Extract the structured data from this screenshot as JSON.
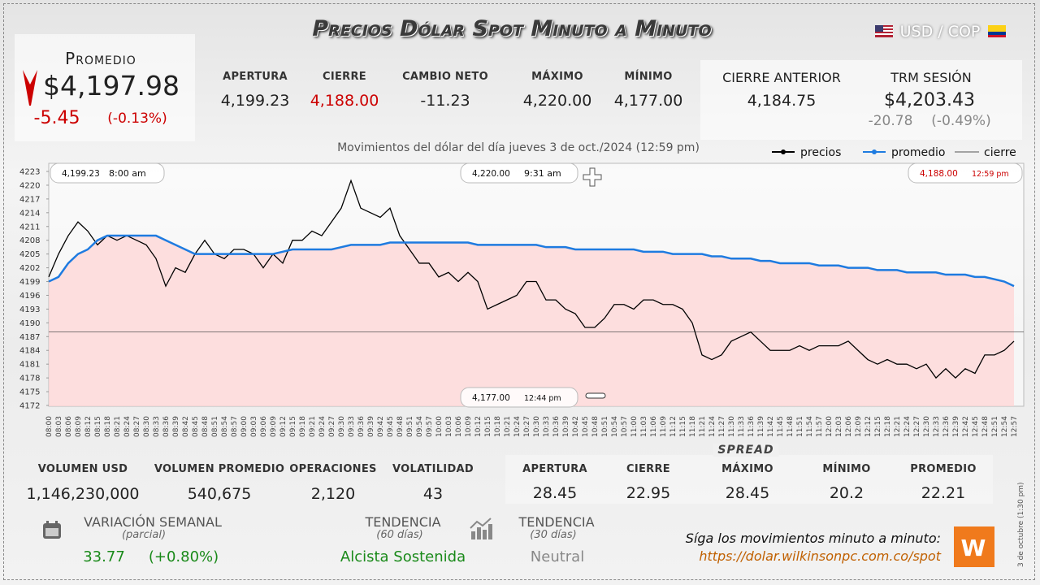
{
  "header": {
    "title": "Precios Dólar Spot Minuto a Minuto",
    "pair": "USD / COP"
  },
  "promedio": {
    "label": "Promedio",
    "value": "$4,197.98",
    "change": "-5.45",
    "change_pct": "(-0.13%)"
  },
  "session": [
    {
      "label": "APERTURA",
      "value": "4,199.23"
    },
    {
      "label": "CIERRE",
      "value": "4,188.00"
    },
    {
      "label": "CAMBIO NETO",
      "value": "-11.23"
    },
    {
      "label": "MÁXIMO",
      "value": "4,220.00"
    },
    {
      "label": "MÍNIMO",
      "value": "4,177.00"
    }
  ],
  "previous_close": {
    "label": "CIERRE ANTERIOR",
    "value": "4,184.75"
  },
  "trm": {
    "label": "TRM SESIÓN",
    "value": "$4,203.43",
    "change": "-20.78",
    "change_pct": "(-0.49%)"
  },
  "chart_data": {
    "type": "line",
    "title": "Movimientos del dólar del día jueves 3 de oct./2024 (12:59 pm)",
    "categories": [
      "08:00",
      "08:03",
      "08:06",
      "08:09",
      "08:12",
      "08:15",
      "08:18",
      "08:21",
      "08:24",
      "08:27",
      "08:30",
      "08:33",
      "08:36",
      "08:39",
      "08:42",
      "08:45",
      "08:48",
      "08:51",
      "08:54",
      "08:57",
      "09:00",
      "09:03",
      "09:06",
      "09:09",
      "09:12",
      "09:15",
      "09:18",
      "09:21",
      "09:24",
      "09:27",
      "09:30",
      "09:33",
      "09:36",
      "09:39",
      "09:42",
      "09:45",
      "09:48",
      "09:51",
      "09:54",
      "09:57",
      "10:00",
      "10:03",
      "10:06",
      "10:09",
      "10:12",
      "10:15",
      "10:18",
      "10:21",
      "10:24",
      "10:27",
      "10:30",
      "10:33",
      "10:36",
      "10:39",
      "10:42",
      "10:45",
      "10:48",
      "10:51",
      "10:54",
      "10:57",
      "11:00",
      "11:03",
      "11:06",
      "11:09",
      "11:12",
      "11:15",
      "11:18",
      "11:21",
      "11:24",
      "11:27",
      "11:30",
      "11:33",
      "11:36",
      "11:39",
      "11:42",
      "11:45",
      "11:48",
      "11:51",
      "11:54",
      "11:57",
      "12:00",
      "12:03",
      "12:06",
      "12:09",
      "12:12",
      "12:15",
      "12:18",
      "12:21",
      "12:24",
      "12:27",
      "12:30",
      "12:33",
      "12:36",
      "12:39",
      "12:42",
      "12:45",
      "12:48",
      "12:51",
      "12:54",
      "12:57"
    ],
    "series": [
      {
        "name": "precios",
        "color": "#000000",
        "values": [
          4200,
          4205,
          4209,
          4212,
          4210,
          4207,
          4209,
          4208,
          4209,
          4208,
          4207,
          4204,
          4198,
          4202,
          4201,
          4205,
          4208,
          4205,
          4204,
          4206,
          4206,
          4205,
          4202,
          4205,
          4203,
          4208,
          4208,
          4210,
          4209,
          4212,
          4215,
          4221,
          4215,
          4214,
          4213,
          4215,
          4209,
          4206,
          4203,
          4203,
          4200,
          4201,
          4199,
          4201,
          4199,
          4193,
          4194,
          4195,
          4196,
          4199,
          4199,
          4195,
          4195,
          4193,
          4192,
          4189,
          4189,
          4191,
          4194,
          4194,
          4193,
          4195,
          4195,
          4194,
          4194,
          4193,
          4190,
          4183,
          4182,
          4183,
          4186,
          4187,
          4188,
          4186,
          4184,
          4184,
          4184,
          4185,
          4184,
          4185,
          4185,
          4185,
          4186,
          4184,
          4182,
          4181,
          4182,
          4181,
          4181,
          4180,
          4181,
          4178,
          4180,
          4178,
          4180,
          4179,
          4183,
          4183,
          4184,
          4186
        ]
      },
      {
        "name": "promedio",
        "color": "#1e7be0",
        "values": [
          4199,
          4200,
          4203,
          4205,
          4206,
          4208,
          4209,
          4209,
          4209,
          4209,
          4209,
          4209,
          4208,
          4207,
          4206,
          4205,
          4205,
          4205,
          4205,
          4205,
          4205,
          4205,
          4205,
          4205,
          4205.5,
          4206,
          4206,
          4206,
          4206,
          4206,
          4206.5,
          4207,
          4207,
          4207,
          4207,
          4207.5,
          4207.5,
          4207.5,
          4207.5,
          4207.5,
          4207.5,
          4207.5,
          4207.5,
          4207.5,
          4207,
          4207,
          4207,
          4207,
          4207,
          4207,
          4207,
          4206.5,
          4206.5,
          4206.5,
          4206,
          4206,
          4206,
          4206,
          4206,
          4206,
          4206,
          4205.5,
          4205.5,
          4205.5,
          4205,
          4205,
          4205,
          4205,
          4204.5,
          4204.5,
          4204,
          4204,
          4204,
          4203.5,
          4203.5,
          4203,
          4203,
          4203,
          4203,
          4202.5,
          4202.5,
          4202.5,
          4202,
          4202,
          4202,
          4201.5,
          4201.5,
          4201.5,
          4201,
          4201,
          4201,
          4201,
          4200.5,
          4200.5,
          4200.5,
          4200,
          4200,
          4199.5,
          4199,
          4198
        ]
      }
    ],
    "reference_line": {
      "name": "cierre",
      "value": 4188,
      "color": "#555555"
    },
    "ylim": [
      4172,
      4223
    ],
    "yticks": [
      4172,
      4175,
      4178,
      4181,
      4184,
      4187,
      4190,
      4193,
      4196,
      4199,
      4202,
      4205,
      4208,
      4211,
      4214,
      4217,
      4220,
      4223
    ],
    "annotations": [
      {
        "text": "4,199.23",
        "time": "8:00 am"
      },
      {
        "text": "4,220.00",
        "time": "9:31 am"
      },
      {
        "text": "4,188.00",
        "time": "12:59 pm"
      },
      {
        "text": "4,177.00",
        "time": "12:44 pm"
      }
    ]
  },
  "stats": [
    {
      "label": "VOLUMEN USD",
      "value": "1,146,230,000"
    },
    {
      "label": "VOLUMEN PROMEDIO",
      "value": "540,675"
    },
    {
      "label": "OPERACIONES",
      "value": "2,120"
    },
    {
      "label": "VOLATILIDAD",
      "value": "43"
    }
  ],
  "spread": {
    "title": "SPREAD",
    "items": [
      {
        "label": "APERTURA",
        "value": "28.45"
      },
      {
        "label": "CIERRE",
        "value": "22.95"
      },
      {
        "label": "MÁXIMO",
        "value": "28.45"
      },
      {
        "label": "MÍNIMO",
        "value": "20.2"
      },
      {
        "label": "PROMEDIO",
        "value": "22.21"
      }
    ]
  },
  "weekly": {
    "label": "VARIACIÓN SEMANAL",
    "sub": "(parcial)",
    "change": "33.77",
    "change_pct": "(+0.80%)"
  },
  "trend60": {
    "label": "TENDENCIA",
    "sub": "(60 días)",
    "value": "Alcista Sostenida"
  },
  "trend30": {
    "label": "TENDENCIA",
    "sub": "(30 días)",
    "value": "Neutral"
  },
  "footer": {
    "text": "Síga los movimientos minuto a minuto:",
    "url": "https://dolar.wilkinsonpc.com.co/spot",
    "side_note": "3 de octubre (1:30 pm)"
  }
}
